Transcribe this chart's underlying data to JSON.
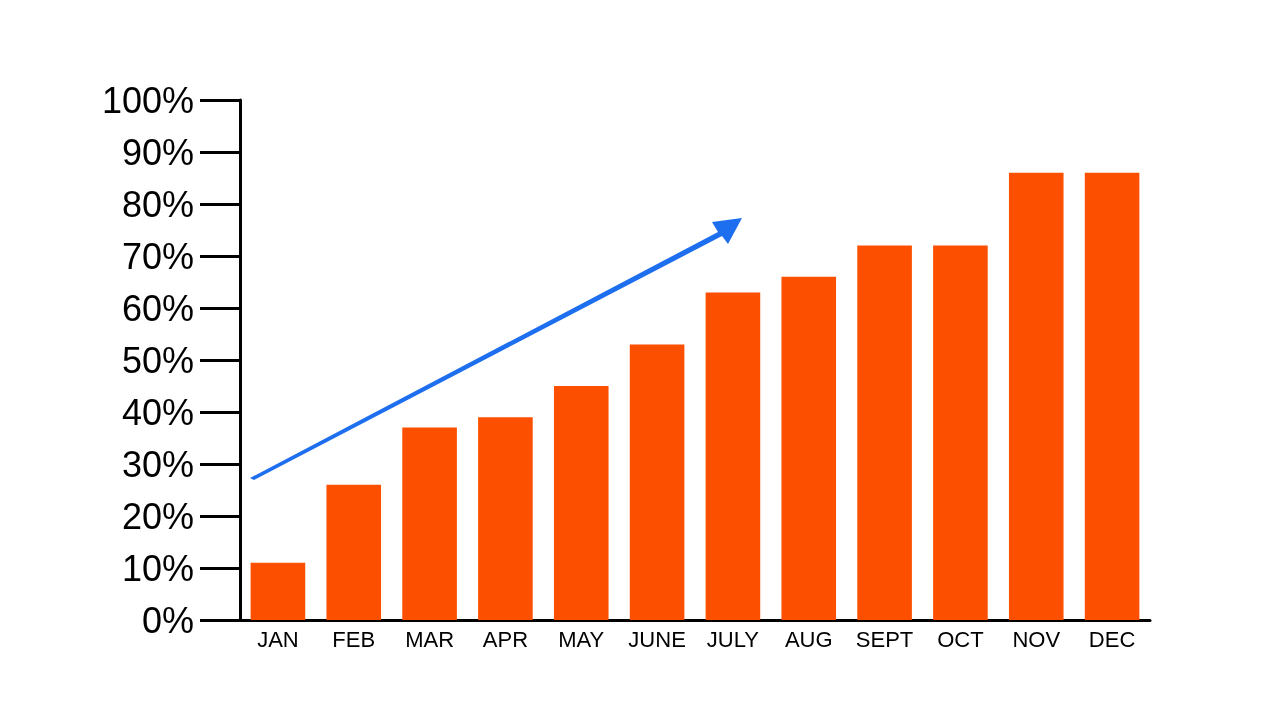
{
  "chart_data": {
    "type": "bar",
    "categories": [
      "JAN",
      "FEB",
      "MAR",
      "APR",
      "MAY",
      "JUNE",
      "JULY",
      "AUG",
      "SEPT",
      "OCT",
      "NOV",
      "DEC"
    ],
    "values": [
      11,
      26,
      37,
      39,
      45,
      53,
      63,
      66,
      72,
      72,
      86,
      86
    ],
    "color": "#fc4f00",
    "ylim": [
      0,
      100
    ],
    "yticks": [
      {
        "value": 0,
        "label": "0%"
      },
      {
        "value": 10,
        "label": "10%"
      },
      {
        "value": 20,
        "label": "20%"
      },
      {
        "value": 30,
        "label": "30%"
      },
      {
        "value": 40,
        "label": "40%"
      },
      {
        "value": 50,
        "label": "50%"
      },
      {
        "value": 60,
        "label": "60%"
      },
      {
        "value": 70,
        "label": "70%"
      },
      {
        "value": 80,
        "label": "80%"
      },
      {
        "value": 90,
        "label": "90%"
      },
      {
        "value": 100,
        "label": "100%"
      }
    ],
    "grid": false
  }
}
